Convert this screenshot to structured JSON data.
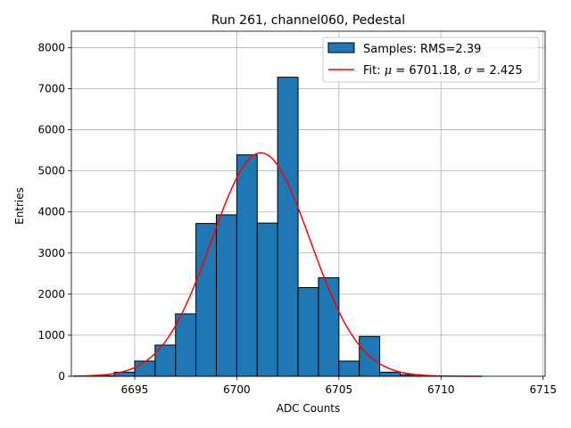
{
  "chart_data": {
    "type": "bar",
    "title": "Run 261, channel060, Pedestal",
    "xlabel": "ADC Counts",
    "ylabel": "Entries",
    "xlim": [
      6691.9,
      6715.1
    ],
    "ylim": [
      0,
      8400
    ],
    "xticks": [
      6695,
      6700,
      6705,
      6710,
      6715
    ],
    "yticks": [
      0,
      1000,
      2000,
      3000,
      4000,
      5000,
      6000,
      7000,
      8000
    ],
    "grid": true,
    "legend_position": "top-right",
    "bin_width": 1,
    "histogram": {
      "name": "Samples: RMS=2.39",
      "color": "#1f77b4",
      "edgecolor": "#000000",
      "bin_left_edges": [
        6692,
        6693,
        6694,
        6695,
        6696,
        6697,
        6698,
        6699,
        6700,
        6701,
        6702,
        6703,
        6704,
        6705,
        6706,
        6707,
        6708,
        6709,
        6710,
        6711,
        6712,
        6713
      ],
      "values": [
        5,
        15,
        100,
        370,
        760,
        1520,
        3720,
        3930,
        5390,
        3730,
        7280,
        2160,
        2400,
        370,
        970,
        100,
        40,
        10,
        0,
        0,
        0,
        0
      ]
    },
    "fit": {
      "name": "Fit: μ = 6701.18, σ = 2.425",
      "legend_prefix": "Fit: ",
      "legend_mu": "μ",
      "legend_mu_value": " = 6701.18, ",
      "legend_sigma": "σ",
      "legend_sigma_value": " = 2.425",
      "color": "#ff0000",
      "mu": 6701.18,
      "sigma": 2.425,
      "amplitude": 5440,
      "x_range": [
        6692,
        6712
      ]
    }
  }
}
